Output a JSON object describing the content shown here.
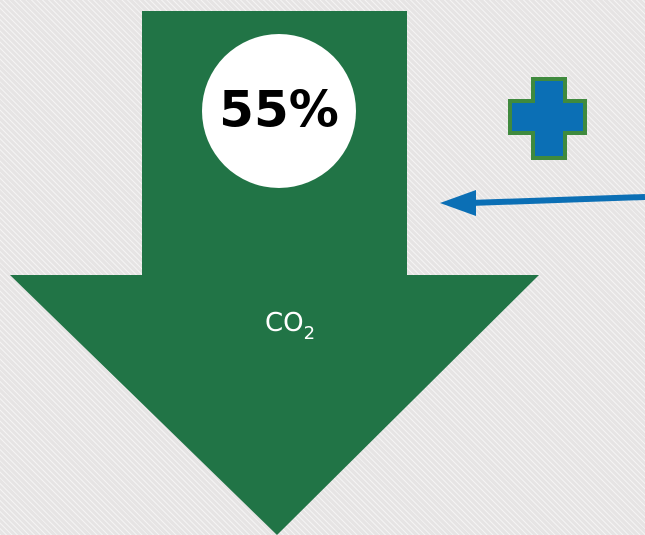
{
  "colors": {
    "arrow_fill": "#217446",
    "circle_fill": "#ffffff",
    "percent_text": "#000000",
    "label_text": "#ffffff",
    "plus_fill": "#0b6fb5",
    "plus_border": "#3f8a3e",
    "pointer_arrow": "#0b6fb5"
  },
  "down_arrow": {
    "percentage": "55%",
    "label": "CO",
    "label_subscript": "2"
  },
  "icons": {
    "plus": "plus-icon",
    "pointer": "left-arrow-icon"
  }
}
